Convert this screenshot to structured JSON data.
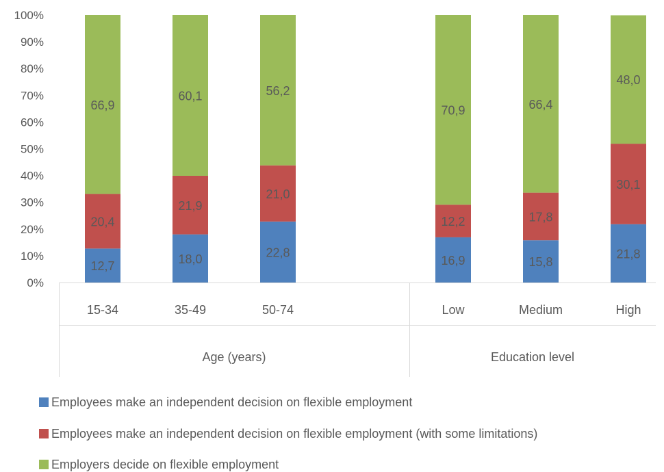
{
  "chart_data": {
    "type": "bar",
    "stacked": true,
    "percent_axis": true,
    "ylim": [
      0,
      100
    ],
    "ytick_labels": [
      "0%",
      "10%",
      "20%",
      "30%",
      "40%",
      "50%",
      "60%",
      "70%",
      "80%",
      "90%",
      "100%"
    ],
    "groups": [
      {
        "label": "Age (years)",
        "categories": [
          "15-34",
          "35-49",
          "50-74"
        ]
      },
      {
        "label": "Education level",
        "categories": [
          "Low",
          "Medium",
          "High"
        ]
      }
    ],
    "categories": [
      "15-34",
      "35-49",
      "50-74",
      "Low",
      "Medium",
      "High"
    ],
    "series": [
      {
        "name": "Employees make an independent decision on flexible employment",
        "color": "#4f81bd",
        "values": [
          12.7,
          18.0,
          22.8,
          16.9,
          15.8,
          21.8
        ],
        "labels": [
          "12,7",
          "18,0",
          "22,8",
          "16,9",
          "15,8",
          "21,8"
        ]
      },
      {
        "name": "Employees make an independent decision on flexible employment (with some limitations)",
        "color": "#c0504d",
        "values": [
          20.4,
          21.9,
          21.0,
          12.2,
          17.8,
          30.1
        ],
        "labels": [
          "20,4",
          "21,9",
          "21,0",
          "12,2",
          "17,8",
          "30,1"
        ]
      },
      {
        "name": "Employers decide on flexible employment",
        "color": "#9bbb59",
        "values": [
          66.9,
          60.1,
          56.2,
          70.9,
          66.4,
          48.0
        ],
        "labels": [
          "66,9",
          "60,1",
          "56,2",
          "70,9",
          "66,4",
          "48,0"
        ]
      }
    ],
    "grid": false,
    "legend_position": "bottom-left"
  }
}
